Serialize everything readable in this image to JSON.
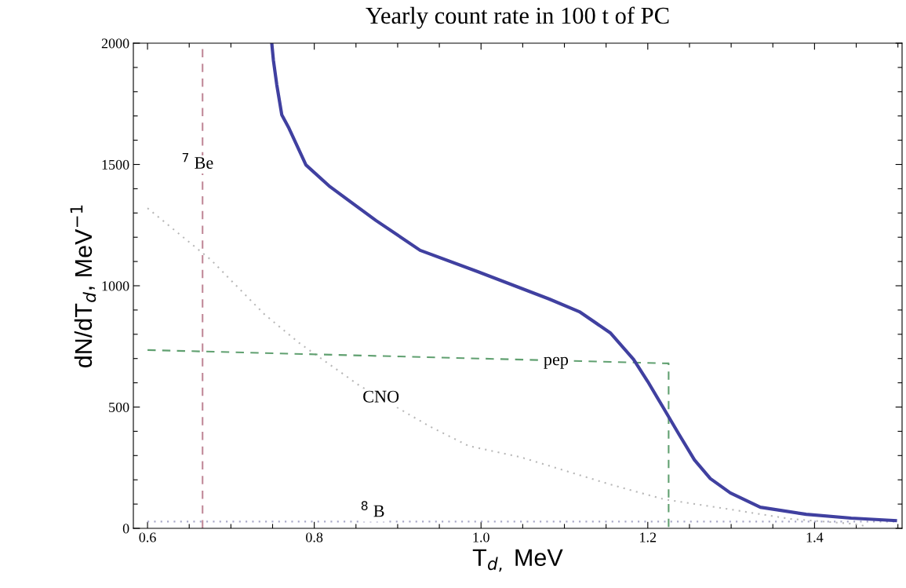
{
  "chart_data": {
    "type": "line",
    "title": "Yearly count rate in 100 t of PC",
    "xlabel": "T$_{d,}$ MeV",
    "ylabel": "dN/dT$_{d}$, MeV$^{−1}$",
    "xlim": [
      0.583,
      1.505
    ],
    "ylim": [
      0,
      2000
    ],
    "xticks": [
      0.6,
      {
        "value": 0.65,
        "label": null
      },
      {
        "value": 0.7,
        "label": null
      },
      {
        "value": 0.75,
        "label": null
      },
      0.8,
      {
        "value": 0.85,
        "label": null
      },
      {
        "value": 0.9,
        "label": null
      },
      {
        "value": 0.95,
        "label": null
      },
      {
        "value": 1.0,
        "label": "1.0"
      },
      {
        "value": 1.05,
        "label": null
      },
      {
        "value": 1.1,
        "label": null
      },
      {
        "value": 1.15,
        "label": null
      },
      1.2,
      {
        "value": 1.25,
        "label": null
      },
      {
        "value": 1.3,
        "label": null
      },
      {
        "value": 1.35,
        "label": null
      },
      1.4,
      {
        "value": 1.45,
        "label": null
      },
      {
        "value": 1.5,
        "label": null
      }
    ],
    "yticks": [
      0,
      {
        "value": 100,
        "label": null
      },
      {
        "value": 200,
        "label": null
      },
      {
        "value": 300,
        "label": null
      },
      {
        "value": 400,
        "label": null
      },
      500,
      {
        "value": 600,
        "label": null
      },
      {
        "value": 700,
        "label": null
      },
      {
        "value": 800,
        "label": null
      },
      {
        "value": 900,
        "label": null
      },
      1000,
      {
        "value": 1100,
        "label": null
      },
      {
        "value": 1200,
        "label": null
      },
      {
        "value": 1300,
        "label": null
      },
      {
        "value": 1400,
        "label": null
      },
      1500,
      {
        "value": 1600,
        "label": null
      },
      {
        "value": 1700,
        "label": null
      },
      {
        "value": 1800,
        "label": null
      },
      {
        "value": 1900,
        "label": null
      },
      2000
    ],
    "grid": false,
    "legend": false,
    "series": [
      {
        "color": "#c08898",
        "line_style": "dashed",
        "x": [
          0.666,
          0.666
        ],
        "values": [
          0,
          2000
        ]
      },
      {
        "color": "#a8a8c8",
        "line_style": "dotted",
        "x": [
          0.6,
          1.5
        ],
        "values": [
          28,
          28
        ]
      },
      {
        "color": "#b8b8b8",
        "line_style": "dotted",
        "x": [
          0.6,
          0.676,
          0.74,
          0.782,
          0.854,
          0.938,
          0.985,
          1.047,
          1.155,
          1.219,
          1.299,
          1.371,
          1.444,
          1.46
        ],
        "values": [
          1320,
          1107,
          883,
          764,
          589,
          421,
          340,
          294,
          181,
          120,
          78,
          39,
          19,
          10
        ]
      },
      {
        "color": "#60a070",
        "line_style": "dashed",
        "x": [
          0.6,
          1.225,
          1.225
        ],
        "values": [
          735,
          680,
          0
        ]
      },
      {
        "color": "#4040a0",
        "line_style": "solid",
        "x": [
          0.749,
          0.751,
          0.755,
          0.761,
          0.769,
          0.79,
          0.819,
          0.874,
          0.927,
          0.996,
          1.082,
          1.118,
          1.155,
          1.183,
          1.2,
          1.219,
          1.237,
          1.256,
          1.275,
          1.299,
          1.335,
          1.39,
          1.444,
          1.497
        ],
        "values": [
          2000,
          1929,
          1829,
          1705,
          1654,
          1498,
          1408,
          1269,
          1146,
          1058,
          945,
          893,
          806,
          696,
          605,
          495,
          390,
          282,
          205,
          146,
          87,
          58,
          42,
          32
        ]
      }
    ],
    "annotations": [
      {
        "text": "$^{7}$ Be",
        "x": 0.66,
        "y": 1500
      },
      {
        "text": "CNO",
        "x": 0.88,
        "y": 537
      },
      {
        "text": "pep",
        "x": 1.09,
        "y": 690
      },
      {
        "text": "$^{8}$ B",
        "x": 0.87,
        "y": 65
      }
    ]
  }
}
